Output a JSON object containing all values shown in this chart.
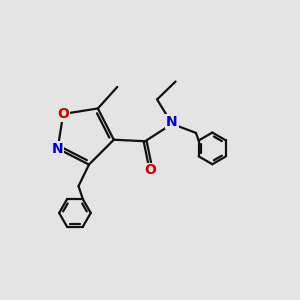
{
  "bg": "#e4e4e4",
  "bc": "#111111",
  "Nc": "#0000cc",
  "Oc": "#cc0000",
  "lw": 1.6,
  "figsize": [
    3.0,
    3.0
  ],
  "dpi": 100,
  "afs": 10,
  "xlim": [
    0.0,
    10.0
  ],
  "ylim": [
    0.5,
    10.5
  ]
}
